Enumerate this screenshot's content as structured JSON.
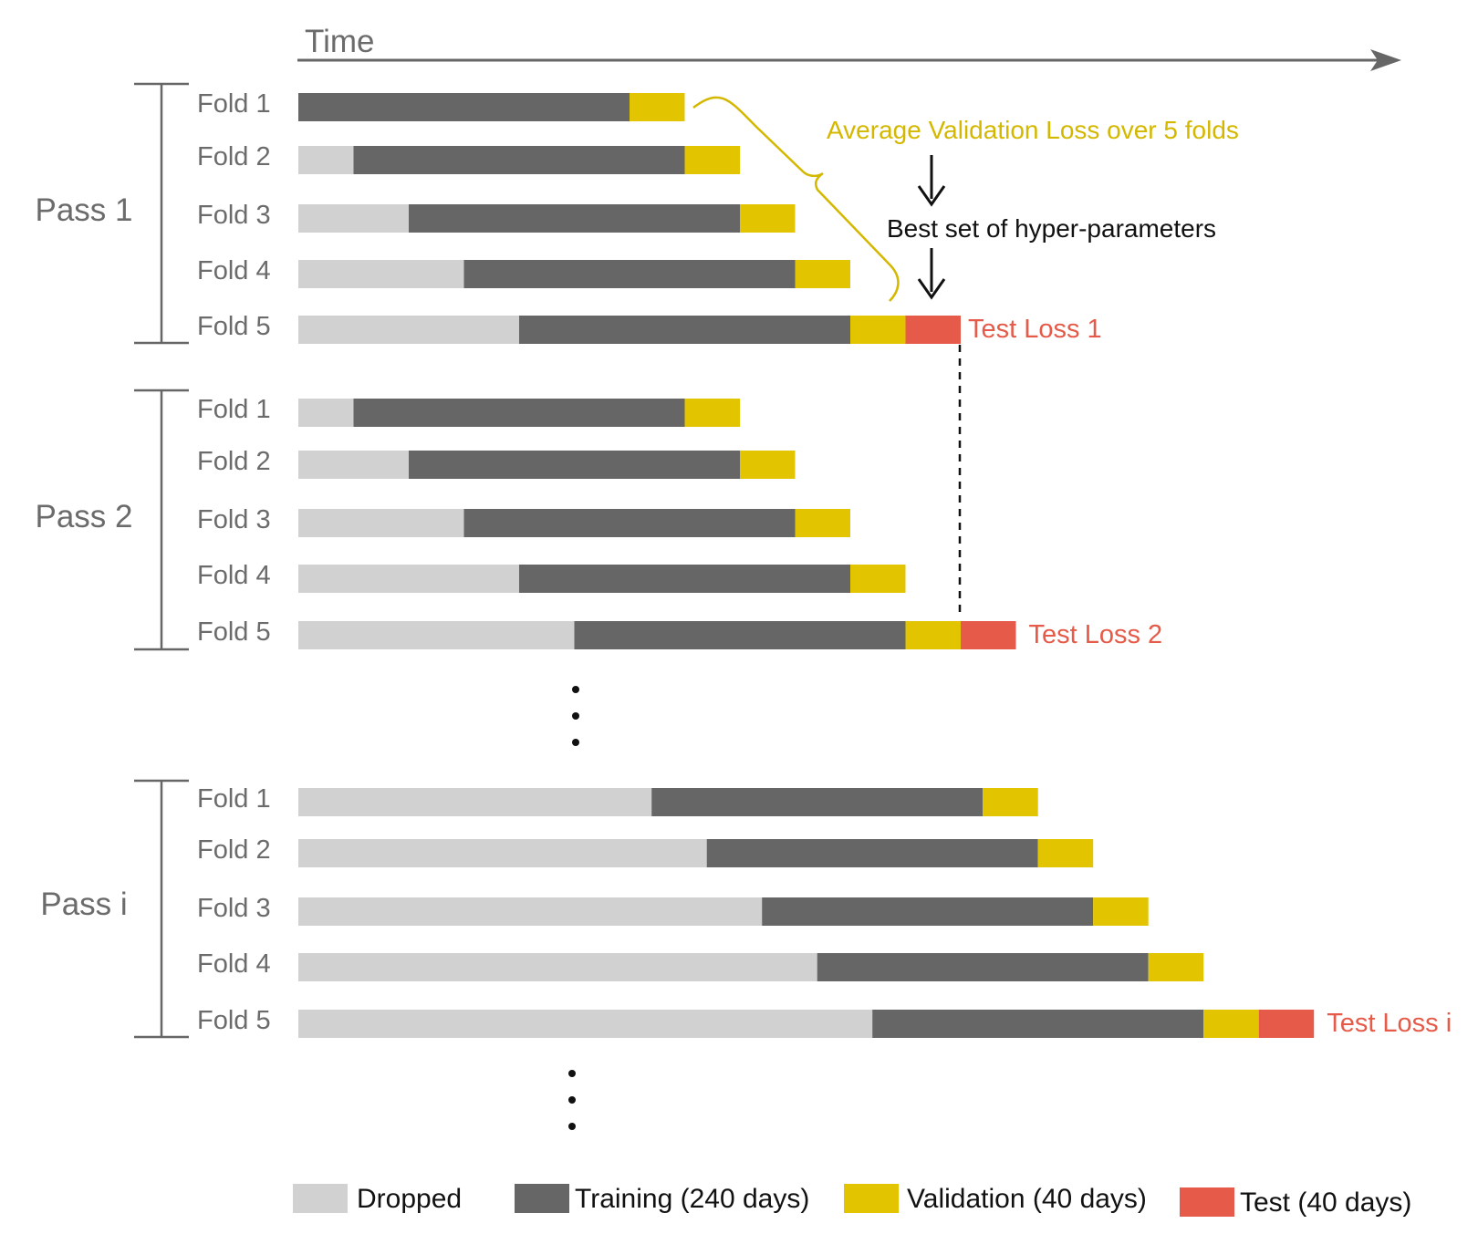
{
  "axis": {
    "label": "Time"
  },
  "colors": {
    "dropped": "#d1d1d1",
    "training": "#666666",
    "validation": "#e2c500",
    "test": "#e55a48",
    "annotation": "#d4b800",
    "axis": "#666666",
    "text_dark": "#111111"
  },
  "annotations": {
    "average": "Average Validation Loss over 5 folds",
    "best": "Best set of hyper-parameters",
    "ellipsis": "⋮"
  },
  "legend": [
    {
      "key": "dropped",
      "label": "Dropped"
    },
    {
      "key": "training",
      "label": "Training (240 days)"
    },
    {
      "key": "validation",
      "label": "Validation (40 days)"
    },
    {
      "key": "test",
      "label": "Test (40 days)"
    }
  ],
  "passes": [
    {
      "label": "Pass 1",
      "test_label": "Test Loss 1",
      "folds": [
        {
          "label": "Fold 1",
          "dropped_days": 0
        },
        {
          "label": "Fold 2",
          "dropped_days": 40
        },
        {
          "label": "Fold 3",
          "dropped_days": 80
        },
        {
          "label": "Fold 4",
          "dropped_days": 120
        },
        {
          "label": "Fold 5",
          "dropped_days": 160
        }
      ]
    },
    {
      "label": "Pass 2",
      "test_label": "Test Loss 2",
      "folds": [
        {
          "label": "Fold 1",
          "dropped_days": 40
        },
        {
          "label": "Fold 2",
          "dropped_days": 80
        },
        {
          "label": "Fold 3",
          "dropped_days": 120
        },
        {
          "label": "Fold 4",
          "dropped_days": 160
        },
        {
          "label": "Fold 5",
          "dropped_days": 200
        }
      ]
    },
    {
      "label": "Pass i",
      "test_label": "Test Loss i",
      "folds": [
        {
          "label": "Fold 1",
          "dropped_days": 256
        },
        {
          "label": "Fold 2",
          "dropped_days": 296
        },
        {
          "label": "Fold 3",
          "dropped_days": 336
        },
        {
          "label": "Fold 4",
          "dropped_days": 376
        },
        {
          "label": "Fold 5",
          "dropped_days": 416
        }
      ]
    }
  ],
  "durations": {
    "training_days": 240,
    "validation_days": 40,
    "test_days": 40
  }
}
